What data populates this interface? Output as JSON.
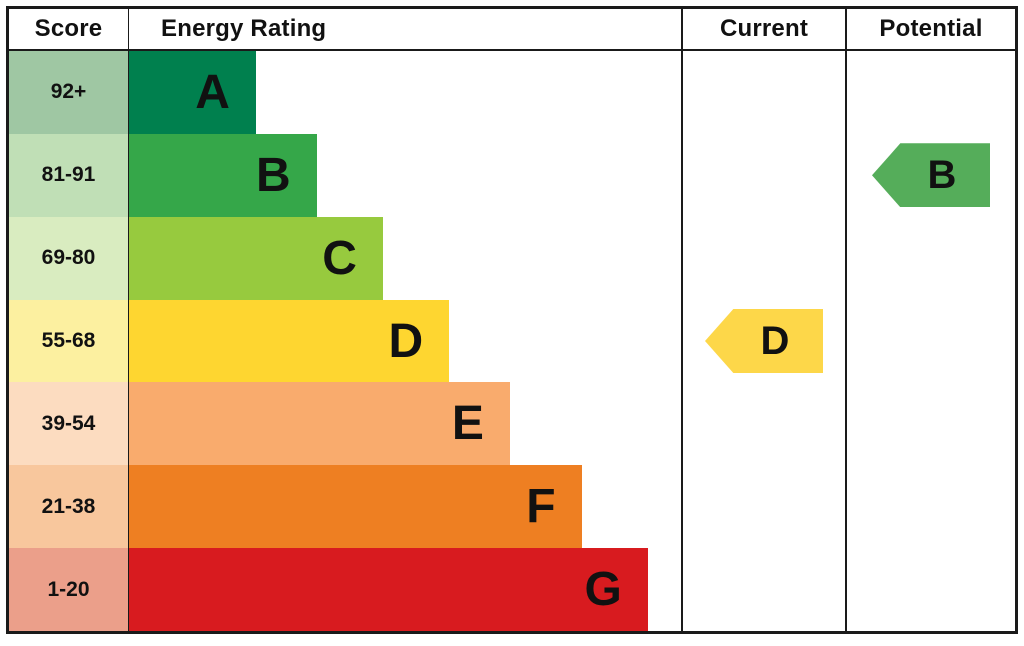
{
  "header": {
    "score": "Score",
    "energy_rating": "Energy Rating",
    "current": "Current",
    "potential": "Potential"
  },
  "chart_data": {
    "type": "bar",
    "orientation": "horizontal",
    "columns": [
      "Score",
      "Energy Rating",
      "Current",
      "Potential"
    ],
    "bands": [
      {
        "rating": "A",
        "score_range": "92+",
        "color": "#00804e",
        "score_bg": "#9fc7a3",
        "bar_length_pct": 23
      },
      {
        "rating": "B",
        "score_range": "81-91",
        "color": "#35a749",
        "score_bg": "#c0dfb6",
        "bar_length_pct": 34
      },
      {
        "rating": "C",
        "score_range": "69-80",
        "color": "#97ca3e",
        "score_bg": "#d9ecc0",
        "bar_length_pct": 46
      },
      {
        "rating": "D",
        "score_range": "55-68",
        "color": "#fed630",
        "score_bg": "#fcf0a0",
        "bar_length_pct": 58
      },
      {
        "rating": "E",
        "score_range": "39-54",
        "color": "#f9ab6d",
        "score_bg": "#fcdcc0",
        "bar_length_pct": 69
      },
      {
        "rating": "F",
        "score_range": "21-38",
        "color": "#ee7f22",
        "score_bg": "#f8c79d",
        "bar_length_pct": 82
      },
      {
        "rating": "G",
        "score_range": "1-20",
        "color": "#d81b1f",
        "score_bg": "#eb9f8a",
        "bar_length_pct": 94
      }
    ],
    "current": {
      "rating": "D",
      "score_range": "55-68",
      "arrow_color": "#fdd749"
    },
    "potential": {
      "rating": "B",
      "score_range": "81-91",
      "arrow_color": "#55ad5a"
    }
  }
}
